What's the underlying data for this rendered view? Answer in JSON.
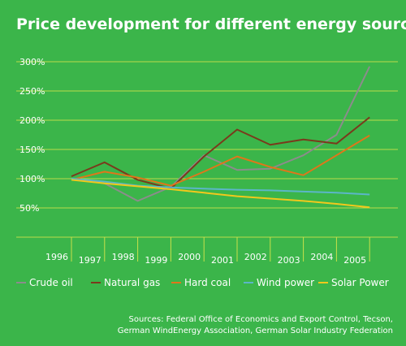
{
  "chart_data": {
    "type": "line",
    "title": "Price development for different energy sources",
    "x": [
      "1996",
      "1997",
      "1998",
      "1999",
      "2000",
      "2001",
      "2002",
      "2003",
      "2004",
      "2005"
    ],
    "y_ticks": [
      "50%",
      "100%",
      "150%",
      "200%",
      "250%",
      "300%"
    ],
    "ylim": [
      0,
      300
    ],
    "grid": true,
    "legend_position": "bottom",
    "series": [
      {
        "name": "Crude oil",
        "color": "#8c8c8c",
        "values": [
          100,
          92,
          62,
          86,
          140,
          115,
          117,
          140,
          175,
          292
        ]
      },
      {
        "name": "Natural gas",
        "color": "#7a3a1c",
        "values": [
          104,
          128,
          98,
          83,
          138,
          184,
          158,
          167,
          160,
          205
        ]
      },
      {
        "name": "Hard coal",
        "color": "#e0761a",
        "values": [
          98,
          112,
          102,
          88,
          112,
          138,
          120,
          106,
          140,
          174
        ]
      },
      {
        "name": "Wind power",
        "color": "#5bb6c7",
        "values": [
          100,
          95,
          88,
          85,
          83,
          81,
          80,
          78,
          76,
          73
        ]
      },
      {
        "name": "Solar Power",
        "color": "#f2c81c",
        "values": [
          98,
          92,
          87,
          82,
          76,
          70,
          66,
          62,
          57,
          51
        ]
      }
    ]
  },
  "source_lines": [
    "Sources: Federal Office of Economics and Export Control, Tecson,",
    "German WindEnergy Association, German Solar Industry Federation"
  ]
}
